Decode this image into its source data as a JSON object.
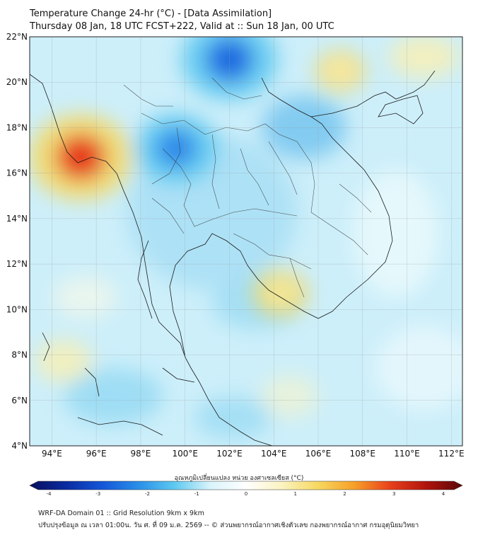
{
  "title": {
    "line1": "Temperature Change 24-hr (°C) - [Data Assimilation]",
    "line2": "Thursday 08 Jan, 18 UTC FCST+222, Valid at :: Sun 18 Jan, 00 UTC"
  },
  "map": {
    "lat_ticks": [
      "22°N",
      "20°N",
      "18°N",
      "16°N",
      "14°N",
      "12°N",
      "10°N",
      "8°N",
      "6°N",
      "4°N"
    ],
    "lon_ticks": [
      "94°E",
      "96°E",
      "98°E",
      "100°E",
      "102°E",
      "104°E",
      "106°E",
      "108°E",
      "110°E",
      "112°E"
    ],
    "lat_range": [
      4,
      22
    ],
    "lon_range": [
      93,
      112.5
    ],
    "background_color": "#cdeffa",
    "anomalies": [
      {
        "kind": "warm",
        "lon": 95.3,
        "lat": 16.7,
        "peak_change_c": 2.5,
        "color": "#e63a1a"
      },
      {
        "kind": "cold",
        "lon": 102.0,
        "lat": 21.0,
        "peak_change_c": -2.3,
        "color": "#1a6be0"
      },
      {
        "kind": "cold",
        "lon": 99.6,
        "lat": 17.1,
        "peak_change_c": -1.8,
        "color": "#2a86e8"
      },
      {
        "kind": "warm",
        "lon": 104.3,
        "lat": 10.7,
        "peak_change_c": 0.8,
        "color": "#f7eda0"
      },
      {
        "kind": "warm",
        "lon": 107.0,
        "lat": 20.5,
        "peak_change_c": 0.6,
        "color": "#f9efb0"
      }
    ]
  },
  "colorbar": {
    "title": "อุณหภูมิเปลี่ยนแปลง หน่วย องศาเซลเซียส (°C)",
    "min": -4,
    "max": 4,
    "ticks": [
      "-4",
      "-3",
      "-2",
      "-1",
      "0",
      "1",
      "2",
      "3",
      "4"
    ],
    "colors": [
      "#08105c",
      "#0a2aa0",
      "#1456d8",
      "#2a8ee8",
      "#5cc8f0",
      "#d8f4fb",
      "#ffffff",
      "#fbf3c0",
      "#f6d860",
      "#f7a028",
      "#e8401c",
      "#b0140c",
      "#5a0808"
    ]
  },
  "footer": {
    "line1": "WRF-DA Domain 01 :: Grid Resolution 9km x 9km",
    "line2": "ปรับปรุงข้อมูล ณ เวลา 01:00น. วัน ศ. ที่ 09 ม.ค. 2569 -- © ส่วนพยากรณ์อากาศเชิงตัวเลข กองพยากรณ์อากาศ กรมอุตุนิยมวิทยา"
  }
}
